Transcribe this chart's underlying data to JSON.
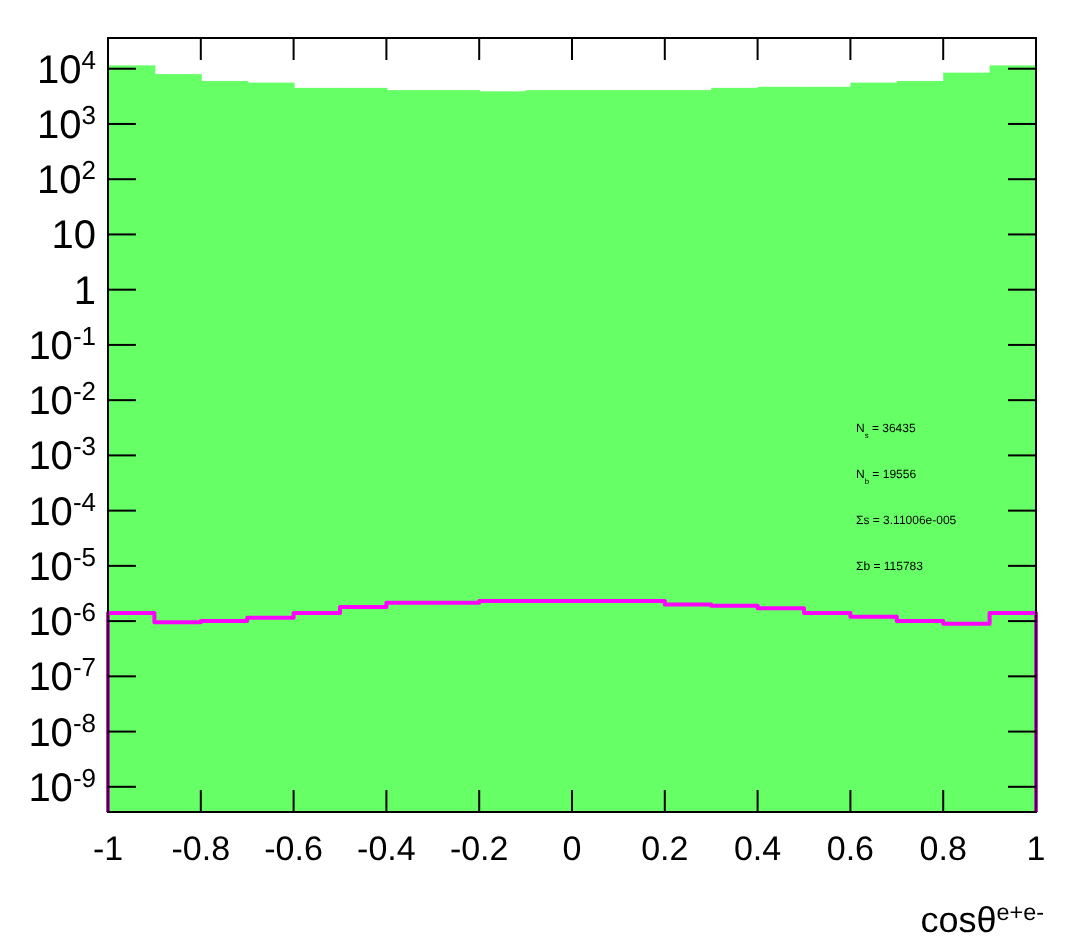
{
  "chart_data": {
    "type": "histogram",
    "xlabel": "cosθ$^{e+e-}$",
    "bins": [
      -1,
      -0.9,
      -0.8,
      -0.7,
      -0.6,
      -0.5,
      -0.4,
      -0.3,
      -0.2,
      -0.1,
      0,
      0.1,
      0.2,
      0.3,
      0.4,
      0.5,
      0.6,
      0.7,
      0.8,
      0.9,
      1
    ],
    "series": [
      {
        "color": "#66ff66",
        "values": [
          11500,
          8000,
          6000,
          5600,
          4500,
          4500,
          4100,
          4100,
          3900,
          4100,
          4100,
          4100,
          4100,
          4500,
          4700,
          4700,
          5600,
          6000,
          8500,
          11500
        ]
      },
      {
        "type": "histogram",
        "line_style": "solid",
        "color": "#ff00ff",
        "values": [
          1.4e-06,
          9.5e-07,
          1e-06,
          1.15e-06,
          1.4e-06,
          1.8e-06,
          2.15e-06,
          2.15e-06,
          2.3e-06,
          2.3e-06,
          2.3e-06,
          2.3e-06,
          2e-06,
          1.9e-06,
          1.7e-06,
          1.4e-06,
          1.2e-06,
          1e-06,
          9e-07,
          1.4e-06
        ]
      }
    ],
    "log": "y",
    "xlim": [
      -1,
      1
    ],
    "ylim": [
      3.5e-10,
      36000
    ],
    "xticks": [
      -1,
      -0.8,
      -0.6,
      -0.4,
      -0.2,
      0,
      0.2,
      0.4,
      0.6,
      0.8,
      1
    ],
    "yticks": [
      {
        "value": 1e-09,
        "label": "10$^{-9}$"
      },
      {
        "value": 1e-08,
        "label": "10$^{-8}$"
      },
      {
        "value": 1e-07,
        "label": "10$^{-7}$"
      },
      {
        "value": 1e-06,
        "label": "10$^{-6}$"
      },
      {
        "value": 1e-05,
        "label": "10$^{-5}$"
      },
      {
        "value": 0.0001,
        "label": "10$^{-4}$"
      },
      {
        "value": 0.001,
        "label": "10$^{-3}$"
      },
      {
        "value": 0.01,
        "label": "10$^{-2}$"
      },
      {
        "value": 0.1,
        "label": "10$^{-1}$"
      },
      1,
      10,
      {
        "value": 100,
        "label": "10$^{2}$"
      },
      {
        "value": 1000,
        "label": "10$^{3}$"
      },
      {
        "value": 10000,
        "label": "10$^{4}$"
      }
    ],
    "annotations": [
      "N$_{s}$ = 36435",
      "N$_{b}$ = 19556",
      "Σs = 3.11006e-005",
      "Σb = 115783"
    ],
    "grid": false
  }
}
